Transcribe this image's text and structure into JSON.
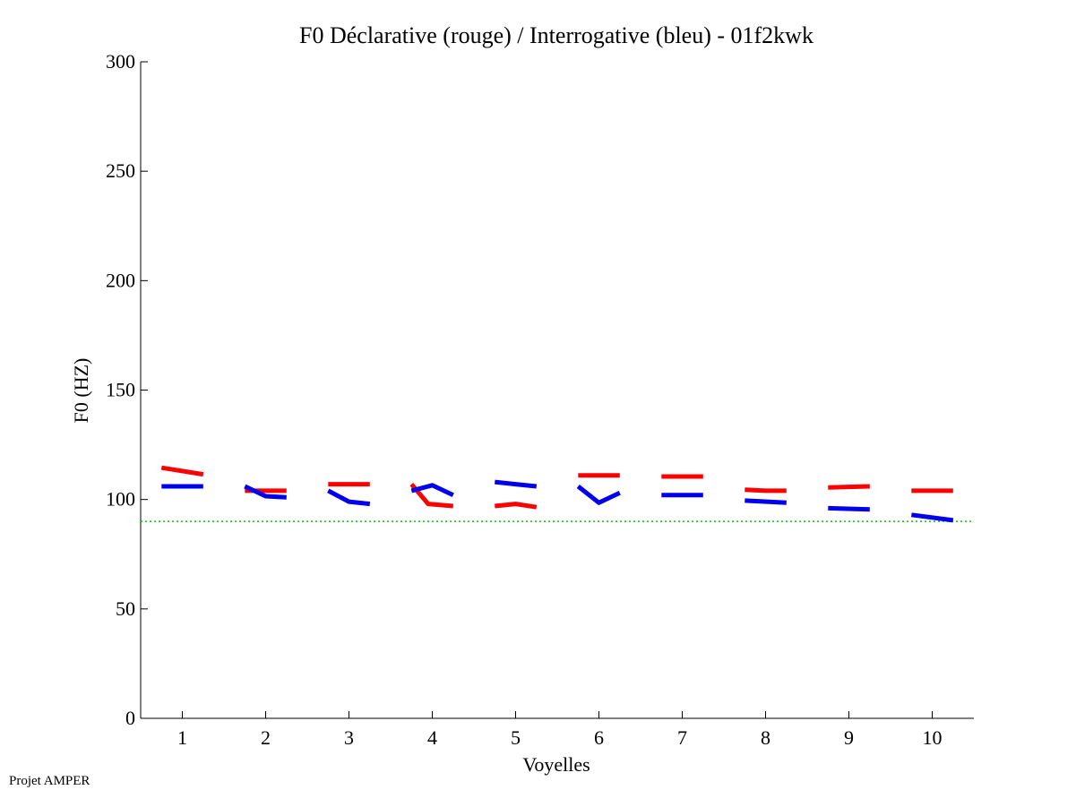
{
  "chart_data": {
    "type": "line",
    "title": "F0 Déclarative (rouge) / Interrogative (bleu) - 01f2kwk",
    "xlabel": "Voyelles",
    "ylabel": "F0 (HZ)",
    "xlim": [
      0.5,
      10.5
    ],
    "ylim": [
      0,
      300
    ],
    "xticks": [
      1,
      2,
      3,
      4,
      5,
      6,
      7,
      8,
      9,
      10
    ],
    "yticks": [
      0,
      50,
      100,
      150,
      200,
      250,
      300
    ],
    "grid": false,
    "reference_line": {
      "y": 90,
      "color": "#00cc00",
      "style": "dotted"
    },
    "series": [
      {
        "color": "#ff0000",
        "segments": [
          {
            "x": [
              0.75,
              1.25
            ],
            "y": [
              114.5,
              111.5
            ]
          },
          {
            "x": [
              1.75,
              2.25
            ],
            "y": [
              104,
              104
            ]
          },
          {
            "x": [
              2.75,
              3.25
            ],
            "y": [
              107,
              107
            ]
          },
          {
            "x": [
              3.75,
              3.95,
              4.25
            ],
            "y": [
              107,
              98,
              97
            ]
          },
          {
            "x": [
              4.75,
              5.0,
              5.25
            ],
            "y": [
              97,
              98,
              96.5
            ]
          },
          {
            "x": [
              5.75,
              6.25
            ],
            "y": [
              111,
              111
            ]
          },
          {
            "x": [
              6.75,
              7.25
            ],
            "y": [
              110.5,
              110.5
            ]
          },
          {
            "x": [
              7.75,
              8.0,
              8.25
            ],
            "y": [
              104.5,
              104,
              104
            ]
          },
          {
            "x": [
              8.75,
              9.25
            ],
            "y": [
              105.5,
              106
            ]
          },
          {
            "x": [
              9.75,
              10.25
            ],
            "y": [
              104,
              104
            ]
          }
        ]
      },
      {
        "color": "#0000ee",
        "segments": [
          {
            "x": [
              0.75,
              1.25
            ],
            "y": [
              106,
              106
            ]
          },
          {
            "x": [
              1.75,
              2.0,
              2.25
            ],
            "y": [
              106,
              101.5,
              101
            ]
          },
          {
            "x": [
              2.75,
              3.0,
              3.25
            ],
            "y": [
              104,
              99,
              98
            ]
          },
          {
            "x": [
              3.75,
              4.0,
              4.25
            ],
            "y": [
              104,
              106.5,
              102
            ]
          },
          {
            "x": [
              4.75,
              5.0,
              5.25
            ],
            "y": [
              108,
              107,
              106
            ]
          },
          {
            "x": [
              5.75,
              6.0,
              6.25
            ],
            "y": [
              106,
              98.5,
              103
            ]
          },
          {
            "x": [
              6.75,
              7.25
            ],
            "y": [
              102,
              102
            ]
          },
          {
            "x": [
              7.75,
              8.25
            ],
            "y": [
              99.5,
              98.5
            ]
          },
          {
            "x": [
              8.75,
              9.25
            ],
            "y": [
              96,
              95.5
            ]
          },
          {
            "x": [
              9.75,
              10.25
            ],
            "y": [
              93,
              90.5
            ]
          }
        ]
      }
    ]
  },
  "footer_text": "Projet AMPER"
}
